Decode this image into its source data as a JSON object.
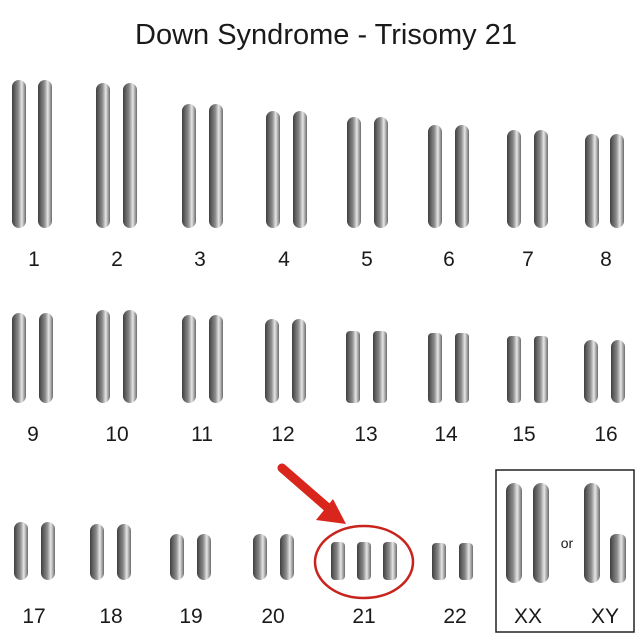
{
  "title": "Down Syndrome - Trisomy 21",
  "highlight_label": "21",
  "or_text": "or",
  "colors": {
    "chromosome_dark": "#4a4a4a",
    "chromosome_light": "#d9d9d9",
    "highlight": "#c8231c",
    "box": "#222222"
  },
  "chromosomes": [
    {
      "label": "1"
    },
    {
      "label": "2"
    },
    {
      "label": "3"
    },
    {
      "label": "4"
    },
    {
      "label": "5"
    },
    {
      "label": "6"
    },
    {
      "label": "7"
    },
    {
      "label": "8"
    },
    {
      "label": "9"
    },
    {
      "label": "10"
    },
    {
      "label": "11"
    },
    {
      "label": "12"
    },
    {
      "label": "13"
    },
    {
      "label": "14"
    },
    {
      "label": "15"
    },
    {
      "label": "16"
    },
    {
      "label": "17"
    },
    {
      "label": "18"
    },
    {
      "label": "19"
    },
    {
      "label": "20"
    },
    {
      "label": "21",
      "copies": 3
    },
    {
      "label": "22"
    }
  ],
  "sex_chromosomes": [
    {
      "label": "XX"
    },
    {
      "label": "XY"
    }
  ]
}
